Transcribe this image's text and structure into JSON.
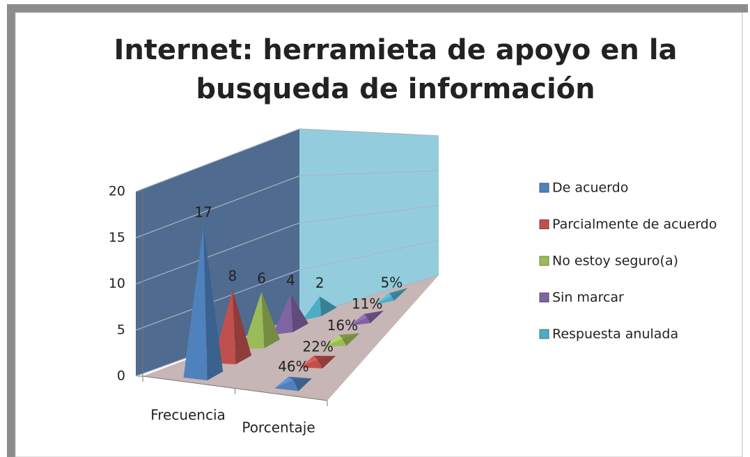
{
  "chart_data": {
    "type": "pyramid3d",
    "title": "Internet: herramieta de apoyo en la busqueda de información",
    "categories": [
      "Frecuencia",
      "Porcentaje"
    ],
    "series": [
      {
        "name": "De acuerdo",
        "color": "#4f81bd",
        "values": [
          17,
          0.46
        ],
        "value_labels": [
          "17",
          "46%"
        ]
      },
      {
        "name": "Parcialmente de acuerdo",
        "color": "#c0504d",
        "values": [
          8,
          0.22
        ],
        "value_labels": [
          "8",
          "22%"
        ]
      },
      {
        "name": "No estoy seguro(a)",
        "color": "#9bbb59",
        "values": [
          6,
          0.16
        ],
        "value_labels": [
          "6",
          "16%"
        ]
      },
      {
        "name": "Sin marcar",
        "color": "#8064a2",
        "values": [
          4,
          0.11
        ],
        "value_labels": [
          "4",
          "11%"
        ]
      },
      {
        "name": "Respuesta anulada",
        "color": "#4bacc6",
        "values": [
          2,
          0.05
        ],
        "value_labels": [
          "2",
          "5%"
        ]
      }
    ],
    "ylim": [
      0,
      20
    ],
    "yticks": [
      0,
      5,
      10,
      15,
      20
    ],
    "grid": true,
    "legend": "right"
  }
}
